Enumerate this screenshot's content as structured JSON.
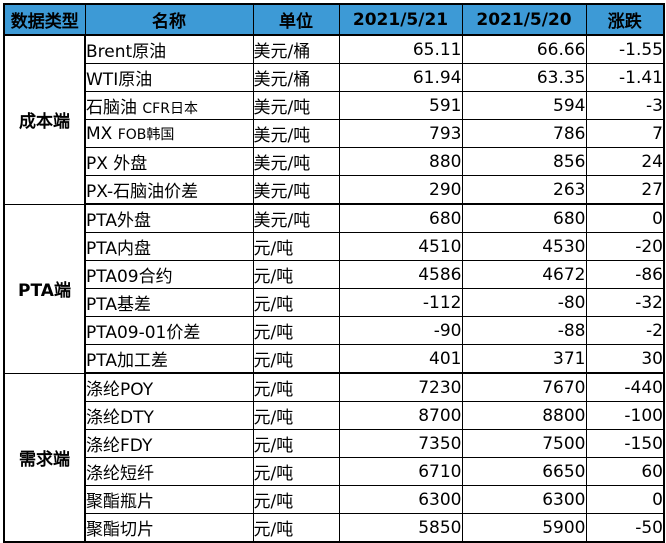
{
  "table": {
    "headers": [
      "数据类型",
      "名称",
      "单位",
      "2021/5/21",
      "2021/5/20",
      "涨跌"
    ],
    "groups": [
      {
        "category": "成本端",
        "rows": [
          {
            "name": "Brent原油",
            "unit": "美元/桶",
            "v1": "65.11",
            "v2": "66.66",
            "chg": "-1.55"
          },
          {
            "name": "WTI原油",
            "unit": "美元/桶",
            "v1": "61.94",
            "v2": "63.35",
            "chg": "-1.41"
          },
          {
            "name_main": "石脑油",
            "name_note": "CFR日本",
            "unit": "美元/吨",
            "v1": "591",
            "v2": "594",
            "chg": "-3"
          },
          {
            "name_main": "MX",
            "name_note": "FOB韩国",
            "unit": "美元/吨",
            "v1": "793",
            "v2": "786",
            "chg": "7"
          },
          {
            "name": "PX 外盘",
            "unit": "美元/吨",
            "v1": "880",
            "v2": "856",
            "chg": "24"
          },
          {
            "name": "PX-石脑油价差",
            "unit": "美元/吨",
            "v1": "290",
            "v2": "263",
            "chg": "27"
          }
        ]
      },
      {
        "category": "PTA端",
        "rows": [
          {
            "name": "PTA外盘",
            "unit": "美元/吨",
            "v1": "680",
            "v2": "680",
            "chg": "0"
          },
          {
            "name": "PTA内盘",
            "unit": "元/吨",
            "v1": "4510",
            "v2": "4530",
            "chg": "-20"
          },
          {
            "name": "PTA09合约",
            "unit": "元/吨",
            "v1": "4586",
            "v2": "4672",
            "chg": "-86"
          },
          {
            "name": "PTA基差",
            "unit": "元/吨",
            "v1": "-112",
            "v2": "-80",
            "chg": "-32"
          },
          {
            "name": "PTA09-01价差",
            "unit": "元/吨",
            "v1": "-90",
            "v2": "-88",
            "chg": "-2"
          },
          {
            "name": "PTA加工差",
            "unit": "元/吨",
            "v1": "401",
            "v2": "371",
            "chg": "30"
          }
        ]
      },
      {
        "category": "需求端",
        "rows": [
          {
            "name": "涤纶POY",
            "unit": "元/吨",
            "v1": "7230",
            "v2": "7670",
            "chg": "-440"
          },
          {
            "name": "涤纶DTY",
            "unit": "元/吨",
            "v1": "8700",
            "v2": "8800",
            "chg": "-100"
          },
          {
            "name": "涤纶FDY",
            "unit": "元/吨",
            "v1": "7350",
            "v2": "7500",
            "chg": "-150"
          },
          {
            "name": "涤纶短纤",
            "unit": "元/吨",
            "v1": "6710",
            "v2": "6650",
            "chg": "60"
          },
          {
            "name": "聚酯瓶片",
            "unit": "元/吨",
            "v1": "6300",
            "v2": "6300",
            "chg": "0"
          },
          {
            "name": "聚酯切片",
            "unit": "元/吨",
            "v1": "5850",
            "v2": "5900",
            "chg": "-50"
          }
        ]
      }
    ]
  },
  "colors": {
    "header_bg": "#3d9ad6",
    "border": "#000000"
  }
}
